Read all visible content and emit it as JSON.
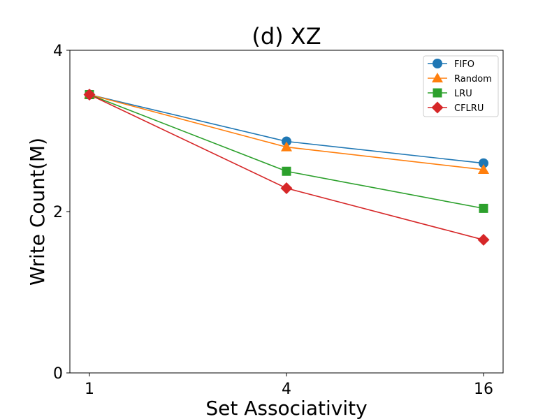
{
  "chart_data": {
    "type": "line",
    "title": "(d) XZ",
    "xlabel": "Set Associativity",
    "ylabel": "Write Count(M)",
    "categories": [
      "1",
      "4",
      "16"
    ],
    "yticks": [
      "0",
      "2",
      "4"
    ],
    "ylim": [
      0,
      4
    ],
    "grid": false,
    "legend_position": "top-right",
    "series": [
      {
        "name": "FIFO",
        "values": [
          3.45,
          2.87,
          2.6
        ],
        "color": "#1f77b4",
        "marker": "circle"
      },
      {
        "name": "Random",
        "values": [
          3.45,
          2.8,
          2.52
        ],
        "color": "#ff7f0e",
        "marker": "triangle"
      },
      {
        "name": "LRU",
        "values": [
          3.45,
          2.5,
          2.04
        ],
        "color": "#2ca02c",
        "marker": "square"
      },
      {
        "name": "CFLRU",
        "values": [
          3.45,
          2.29,
          1.65
        ],
        "color": "#d62728",
        "marker": "diamond"
      }
    ]
  }
}
